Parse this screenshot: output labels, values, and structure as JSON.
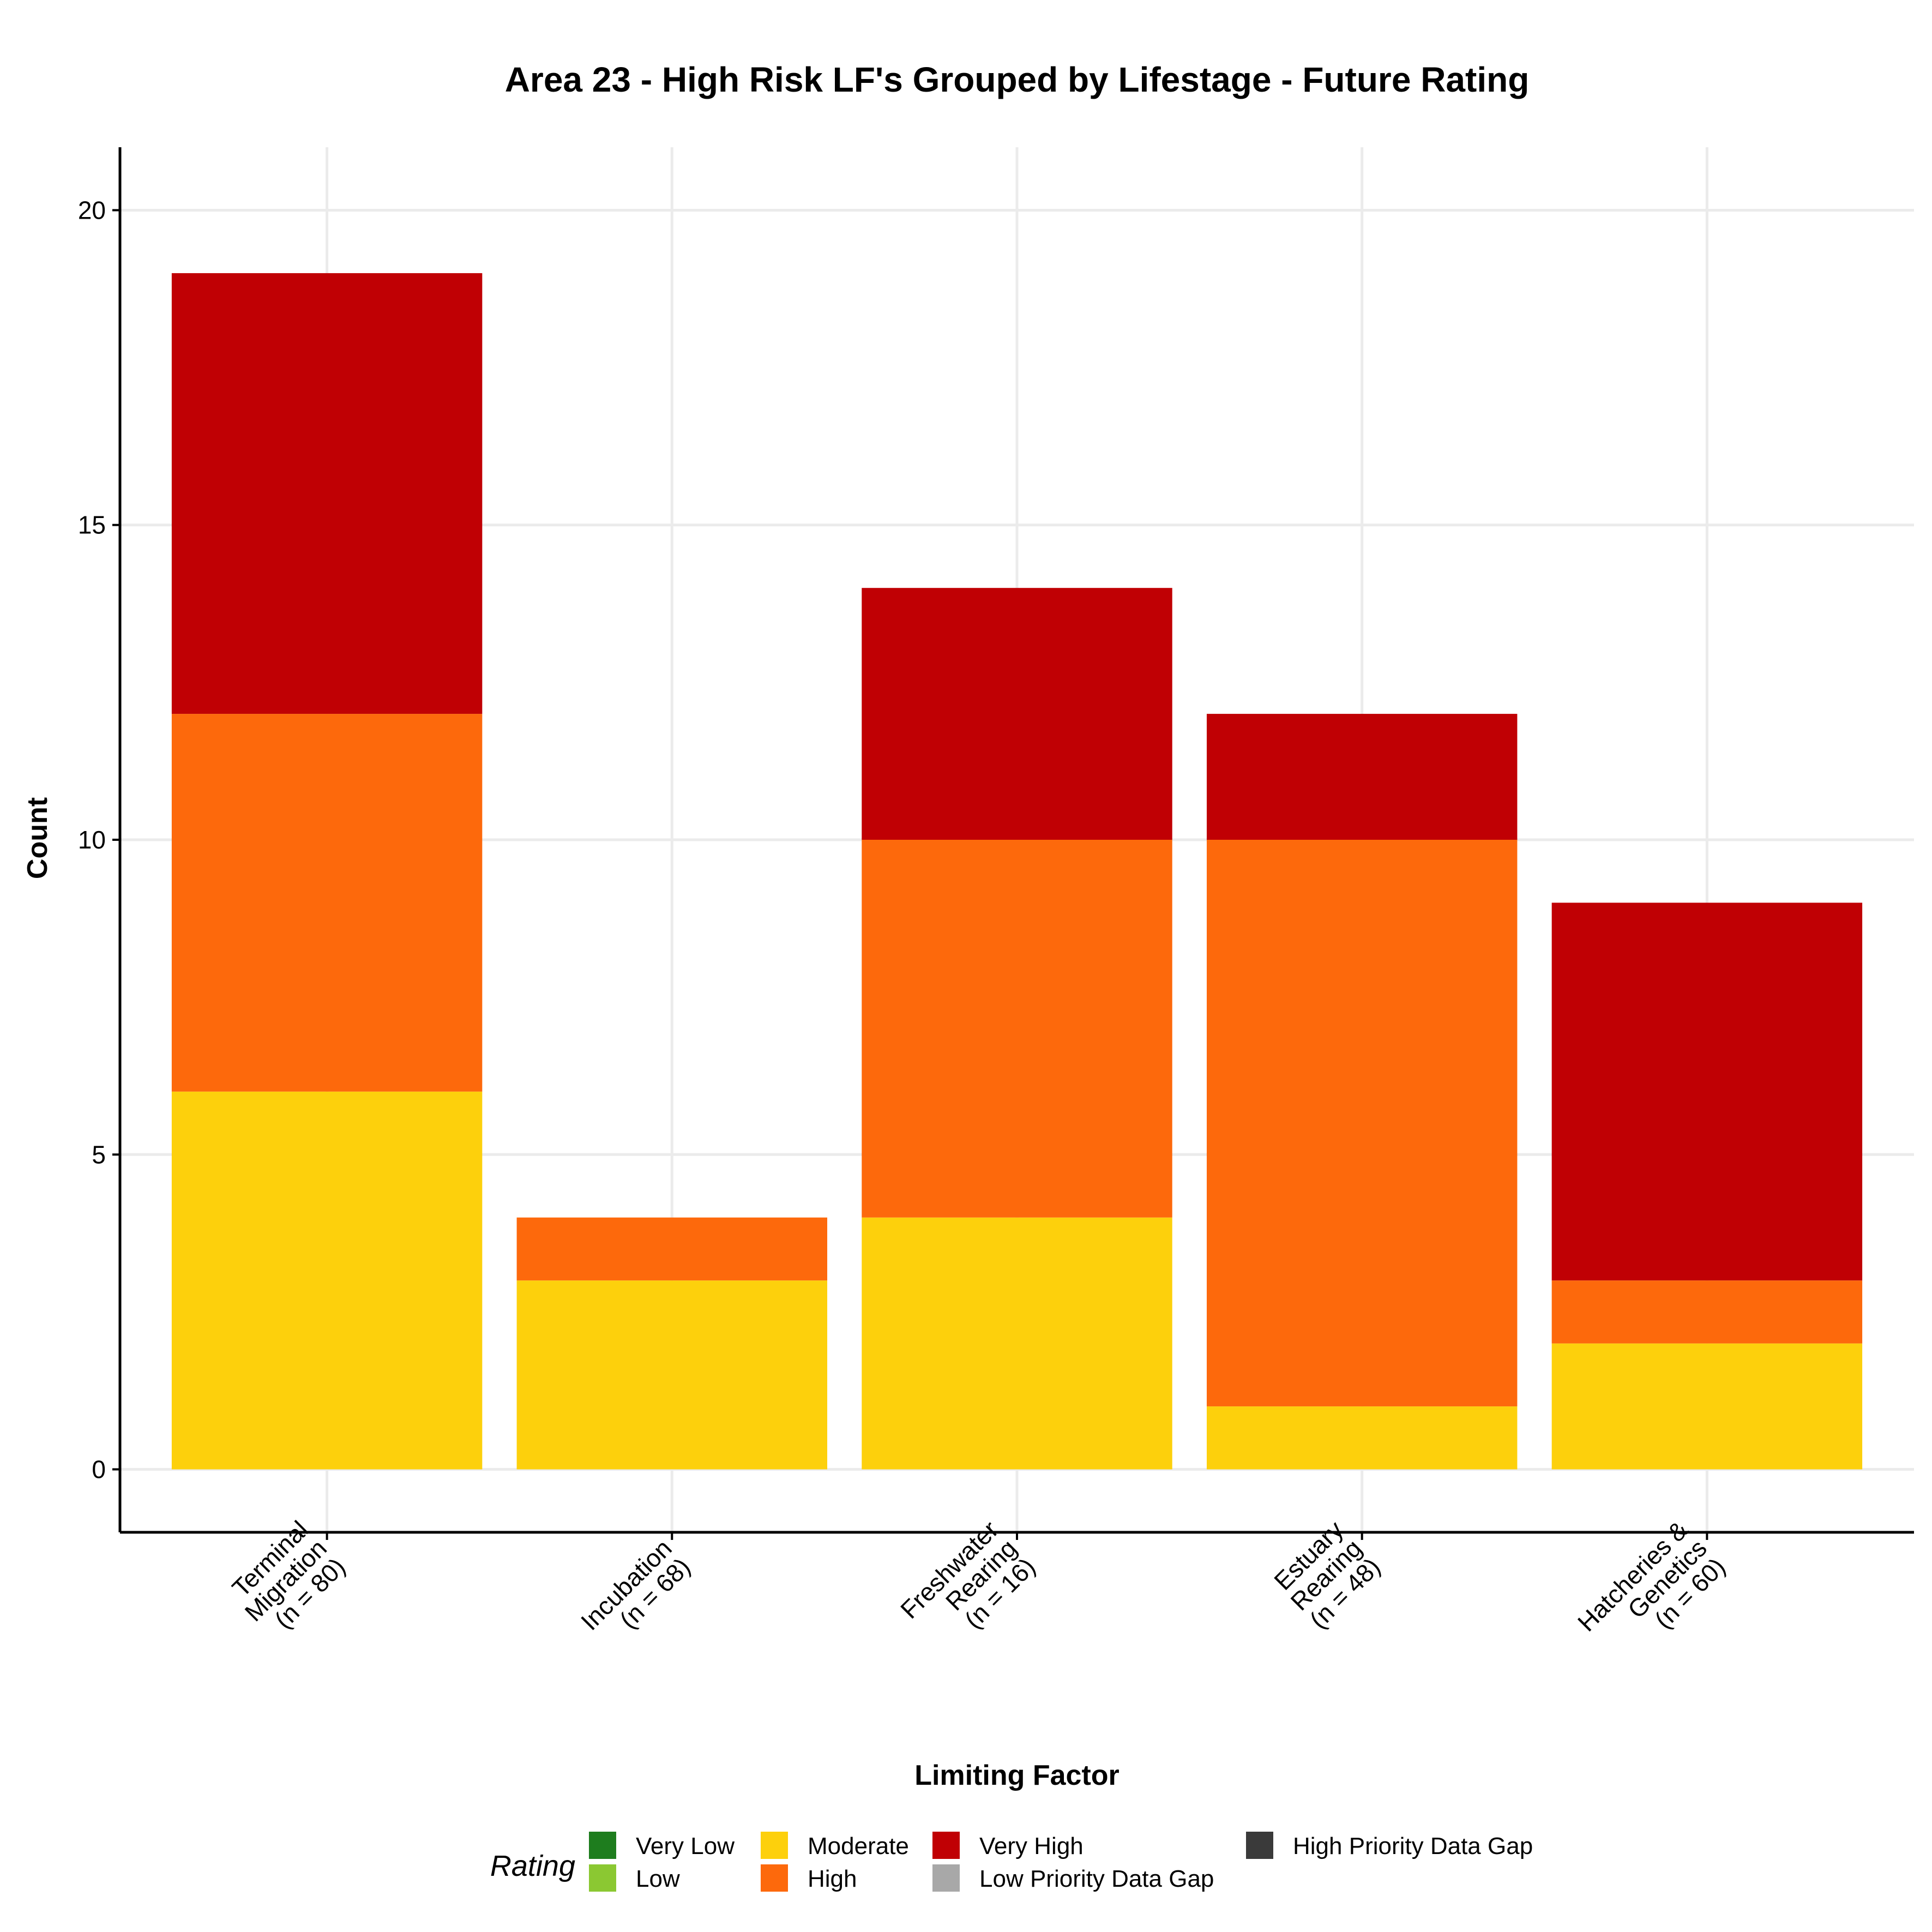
{
  "chart_data": {
    "type": "bar",
    "stacked": true,
    "title": "Area 23 - High Risk LF's Grouped by Lifestage - Future Rating",
    "xlabel": "Limiting Factor",
    "ylabel": "Count",
    "ylim": [
      -1,
      21
    ],
    "yticks": [
      "0",
      "5",
      "10",
      "15",
      "20"
    ],
    "grid": true,
    "categories": [
      [
        "Terminal",
        "Migration",
        "(n = 80)"
      ],
      [
        "Incubation",
        "(n = 68)"
      ],
      [
        "Freshwater",
        "Rearing",
        "(n = 16)"
      ],
      [
        "Estuary",
        "Rearing",
        "(n = 48)"
      ],
      [
        "Hatcheries &",
        "Genetics",
        "(n = 60)"
      ]
    ],
    "series": [
      {
        "name": "Moderate",
        "color": "#FDD00C",
        "values": [
          6,
          3,
          4,
          1,
          2
        ]
      },
      {
        "name": "High",
        "color": "#FD690C",
        "values": [
          6,
          1,
          6,
          9,
          1
        ]
      },
      {
        "name": "Very High",
        "color": "#C00004",
        "values": [
          7,
          0,
          4,
          2,
          6
        ]
      }
    ],
    "legend": {
      "title": "Rating",
      "position": "bottom",
      "entries": [
        {
          "label": "Very Low",
          "color": "#1E7D1E"
        },
        {
          "label": "Low",
          "color": "#8BC832"
        },
        {
          "label": "Moderate",
          "color": "#FDD00C"
        },
        {
          "label": "High",
          "color": "#FD690C"
        },
        {
          "label": "Very High",
          "color": "#C00004"
        },
        {
          "label": "Low Priority Data Gap",
          "color": "#A8A8A8"
        },
        {
          "label": "High Priority Data Gap",
          "color": "#3A3A3A"
        }
      ]
    }
  }
}
